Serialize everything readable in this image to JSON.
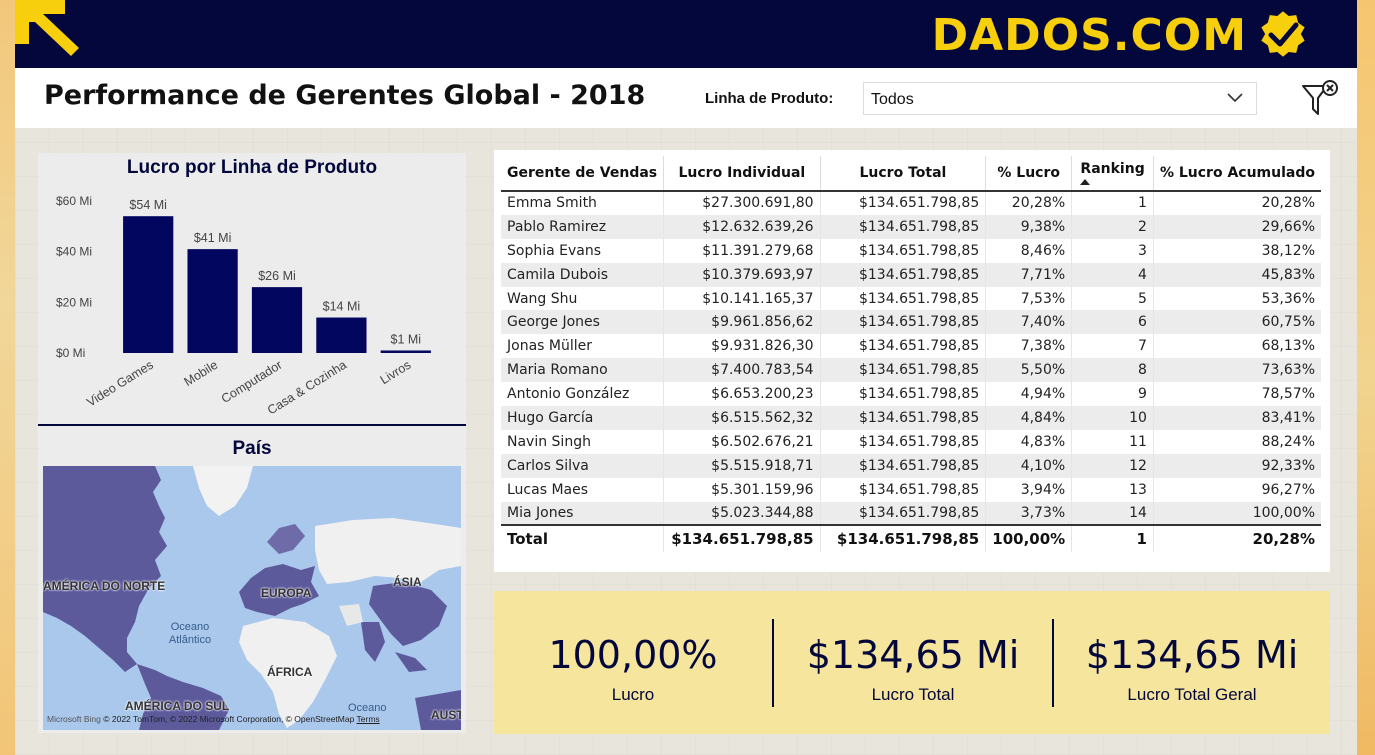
{
  "header": {
    "brand": "DADOS.COM",
    "page_title": "Performance de Gerentes Global - 2018"
  },
  "filter": {
    "label": "Linha de Produto:",
    "selected": "Todos"
  },
  "bar_chart": {
    "title": "Lucro por Linha de Produto"
  },
  "chart_data": {
    "type": "bar",
    "title": "Lucro por Linha de Produto",
    "categories": [
      "Video Games",
      "Mobile",
      "Computador",
      "Casa & Cozinha",
      "Livros"
    ],
    "values": [
      54,
      41,
      26,
      14,
      1
    ],
    "data_labels": [
      "$54 Mi",
      "$41 Mi",
      "$26 Mi",
      "$14 Mi",
      "$1 Mi"
    ],
    "y_ticks": [
      0,
      20,
      40,
      60
    ],
    "y_tick_labels": [
      "$0 Mi",
      "$20 Mi",
      "$40 Mi",
      "$60 Mi"
    ],
    "ylim": [
      0,
      60
    ],
    "color": "#03065f"
  },
  "map": {
    "title": "País",
    "labels": {
      "north_america": "AMÉRICA DO NORTE",
      "europe": "EUROPA",
      "asia": "ÁSIA",
      "africa": "ÁFRICA",
      "south_america": "AMÉRICA DO SUL",
      "atlantic": "Oceano Atlântico",
      "ocean2": "Oceano",
      "aust": "AUST"
    },
    "credit": "Microsoft Bing",
    "copyright": "© 2022 TomTom, © 2022 Microsoft Corporation, © OpenStreetMap",
    "terms": "Terms"
  },
  "table": {
    "headers": [
      "Gerente de Vendas",
      "Lucro Individual",
      "Lucro Total",
      "% Lucro",
      "Ranking",
      "% Lucro Acumulado"
    ],
    "rows": [
      {
        "name": "Emma Smith",
        "individual": "$27.300.691,80",
        "total": "$134.651.798,85",
        "pct": "20,28%",
        "rank": "1",
        "cum": "20,28%"
      },
      {
        "name": "Pablo Ramirez",
        "individual": "$12.632.639,26",
        "total": "$134.651.798,85",
        "pct": "9,38%",
        "rank": "2",
        "cum": "29,66%"
      },
      {
        "name": "Sophia Evans",
        "individual": "$11.391.279,68",
        "total": "$134.651.798,85",
        "pct": "8,46%",
        "rank": "3",
        "cum": "38,12%"
      },
      {
        "name": "Camila Dubois",
        "individual": "$10.379.693,97",
        "total": "$134.651.798,85",
        "pct": "7,71%",
        "rank": "4",
        "cum": "45,83%"
      },
      {
        "name": "Wang Shu",
        "individual": "$10.141.165,37",
        "total": "$134.651.798,85",
        "pct": "7,53%",
        "rank": "5",
        "cum": "53,36%"
      },
      {
        "name": "George Jones",
        "individual": "$9.961.856,62",
        "total": "$134.651.798,85",
        "pct": "7,40%",
        "rank": "6",
        "cum": "60,75%"
      },
      {
        "name": "Jonas Müller",
        "individual": "$9.931.826,30",
        "total": "$134.651.798,85",
        "pct": "7,38%",
        "rank": "7",
        "cum": "68,13%"
      },
      {
        "name": "Maria Romano",
        "individual": "$7.400.783,54",
        "total": "$134.651.798,85",
        "pct": "5,50%",
        "rank": "8",
        "cum": "73,63%"
      },
      {
        "name": "Antonio González",
        "individual": "$6.653.200,23",
        "total": "$134.651.798,85",
        "pct": "4,94%",
        "rank": "9",
        "cum": "78,57%"
      },
      {
        "name": "Hugo García",
        "individual": "$6.515.562,32",
        "total": "$134.651.798,85",
        "pct": "4,84%",
        "rank": "10",
        "cum": "83,41%"
      },
      {
        "name": "Navin Singh",
        "individual": "$6.502.676,21",
        "total": "$134.651.798,85",
        "pct": "4,83%",
        "rank": "11",
        "cum": "88,24%"
      },
      {
        "name": "Carlos Silva",
        "individual": "$5.515.918,71",
        "total": "$134.651.798,85",
        "pct": "4,10%",
        "rank": "12",
        "cum": "92,33%"
      },
      {
        "name": "Lucas Maes",
        "individual": "$5.301.159,96",
        "total": "$134.651.798,85",
        "pct": "3,94%",
        "rank": "13",
        "cum": "96,27%"
      },
      {
        "name": "Mia Jones",
        "individual": "$5.023.344,88",
        "total": "$134.651.798,85",
        "pct": "3,73%",
        "rank": "14",
        "cum": "100,00%"
      }
    ],
    "total": {
      "name": "Total",
      "individual": "$134.651.798,85",
      "total": "$134.651.798,85",
      "pct": "100,00%",
      "rank": "1",
      "cum": "20,28%"
    }
  },
  "kpis": [
    {
      "value": "100,00%",
      "label": "Lucro"
    },
    {
      "value": "$134,65 Mi",
      "label": "Lucro Total"
    },
    {
      "value": "$134,65 Mi",
      "label": "Lucro Total Geral"
    }
  ],
  "colors": {
    "navy": "#03073b",
    "bar": "#03065f",
    "brand_yellow": "#f8cf0d",
    "kpi_bg": "#f6e59c",
    "map_land": "#5d5a9c",
    "map_water": "#aac7ec"
  }
}
